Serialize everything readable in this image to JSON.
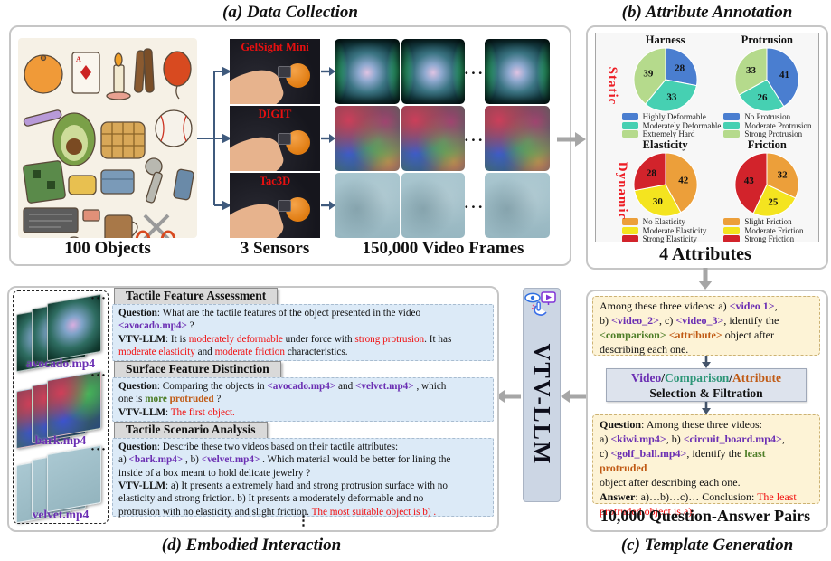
{
  "colors": {
    "pie_blue": "#4a7ed0",
    "pie_teal": "#46d0b2",
    "pie_green": "#b5da8c",
    "pie_orange": "#ec9f3a",
    "pie_yellow": "#f4e41f",
    "pie_red": "#d2232b",
    "static_dynamic_red": "#ed1c24",
    "sensor_label_red": "#e81010",
    "tag_purple": "#6b2fb3",
    "tag_green": "#4e7e28",
    "tag_orange": "#c05a14",
    "tag_teal": "#2e9678",
    "highlight_red": "#f10f0f"
  },
  "panel_a": {
    "title": "(a) Data Collection",
    "objects_label": "100 Objects",
    "sensors_label": "3 Sensors",
    "frames_label": "150,000 Video Frames",
    "sensors": [
      {
        "name": "GelSight Mini"
      },
      {
        "name": "DIGIT"
      },
      {
        "name": "Tac3D"
      }
    ],
    "dots": "···"
  },
  "panel_b": {
    "title": "(b) Attribute Annotation",
    "static_label": "Static",
    "dynamic_label": "Dynamic",
    "attributes_label": "4 Attributes"
  },
  "chart_data": [
    {
      "type": "pie",
      "group": "Static",
      "title": "Harness",
      "labels": [
        "Highly Deformable",
        "Moderately Deformable",
        "Extremely Hard"
      ],
      "values": [
        28,
        33,
        39
      ],
      "colors": [
        "#4a7ed0",
        "#46d0b2",
        "#b5da8c"
      ],
      "legend_position": "bottom"
    },
    {
      "type": "pie",
      "group": "Static",
      "title": "Protrusion",
      "labels": [
        "No Protrusion",
        "Moderate Protrusion",
        "Strong Protrusion"
      ],
      "values": [
        41,
        26,
        33
      ],
      "colors": [
        "#4a7ed0",
        "#46d0b2",
        "#b5da8c"
      ],
      "legend_position": "bottom"
    },
    {
      "type": "pie",
      "group": "Dynamic",
      "title": "Elasticity",
      "labels": [
        "No Elasticity",
        "Moderate Elasticity",
        "Strong Elasticity"
      ],
      "values": [
        42,
        30,
        28
      ],
      "colors": [
        "#ec9f3a",
        "#f4e41f",
        "#d2232b"
      ],
      "legend_position": "bottom"
    },
    {
      "type": "pie",
      "group": "Dynamic",
      "title": "Friction",
      "labels": [
        "Slight Friction",
        "Moderate Friction",
        "Strong Friction"
      ],
      "values": [
        32,
        25,
        43
      ],
      "colors": [
        "#ec9f3a",
        "#f4e41f",
        "#d2232b"
      ],
      "legend_position": "bottom"
    }
  ],
  "panel_c": {
    "title": "(c) Template Generation",
    "pairs_label": "10,000 Question-Answer Pairs",
    "template_box": [
      {
        "t": "Among these three videos: a) "
      },
      {
        "t": "<video 1>",
        "c": "purple"
      },
      {
        "t": ","
      },
      {
        "br": true
      },
      {
        "t": "b) "
      },
      {
        "t": "<video_2>",
        "c": "purple"
      },
      {
        "t": ", c) "
      },
      {
        "t": "<video_3>",
        "c": "purple"
      },
      {
        "t": ", identify the"
      },
      {
        "br": true
      },
      {
        "t": "<comparison>",
        "c": "green"
      },
      {
        "t": " "
      },
      {
        "t": "<attribute>",
        "c": "orange"
      },
      {
        "t": " object after"
      },
      {
        "br": true
      },
      {
        "t": "describing each one."
      }
    ],
    "selection_line1": [
      {
        "t": "Video",
        "c": "purple"
      },
      {
        "t": "/",
        "c": "b"
      },
      {
        "t": "Comparison",
        "c": "teal"
      },
      {
        "t": "/",
        "c": "b"
      },
      {
        "t": "Attribute",
        "c": "orange"
      }
    ],
    "selection_line2": "Selection & Filtration",
    "qa_box": [
      {
        "t": "Question",
        "c": "b"
      },
      {
        "t": ": Among these three videos:"
      },
      {
        "br": true
      },
      {
        "t": "a) "
      },
      {
        "t": "<kiwi.mp4>",
        "c": "purple"
      },
      {
        "t": ", b) "
      },
      {
        "t": "<circuit_board.mp4>",
        "c": "purple"
      },
      {
        "t": ","
      },
      {
        "br": true
      },
      {
        "t": "c) "
      },
      {
        "t": "<golf_ball.mp4>",
        "c": "purple"
      },
      {
        "t": ", identify the "
      },
      {
        "t": "least",
        "c": "green"
      },
      {
        "t": " "
      },
      {
        "t": "protruded",
        "c": "orange"
      },
      {
        "br": true
      },
      {
        "t": "object after describing each one."
      },
      {
        "br": true
      },
      {
        "t": "Answer",
        "c": "b"
      },
      {
        "t": ": a)…b)…c)… Conclusion: "
      },
      {
        "t": "The least",
        "c": "red"
      },
      {
        "br": true
      },
      {
        "t": "protruded object is a).",
        "c": "red"
      }
    ]
  },
  "vtv_bar": {
    "label": "VTV-LLM",
    "icon": "vision-video-touch-icon"
  },
  "panel_d": {
    "title": "(d) Embodied Interaction",
    "stack_dots": "···",
    "vertical_dots": "⋮",
    "videos": [
      {
        "label": "avocado.mp4"
      },
      {
        "label": "bark.mp4"
      },
      {
        "label": "velvet.mp4"
      }
    ],
    "sections": [
      {
        "header": "Tactile Feature Assessment",
        "body": [
          {
            "t": "Question",
            "c": "b"
          },
          {
            "t": ": What are the tactile features of the object presented in the video"
          },
          {
            "br": true
          },
          {
            "t": "<avocado.mp4>",
            "c": "purple"
          },
          {
            "t": " ?"
          },
          {
            "br": true
          },
          {
            "t": "VTV-LLM",
            "c": "b"
          },
          {
            "t": ": It is "
          },
          {
            "t": "moderately deformable",
            "c": "red"
          },
          {
            "t": " under force with "
          },
          {
            "t": "strong protrusion",
            "c": "red"
          },
          {
            "t": ". It has"
          },
          {
            "br": true
          },
          {
            "t": "moderate elasticity",
            "c": "red"
          },
          {
            "t": " and "
          },
          {
            "t": "moderate friction",
            "c": "red"
          },
          {
            "t": " characteristics."
          }
        ]
      },
      {
        "header": "Surface Feature Distinction",
        "body": [
          {
            "t": "Question",
            "c": "b"
          },
          {
            "t": ": Comparing the objects in "
          },
          {
            "t": "<avocado.mp4>",
            "c": "purple"
          },
          {
            "t": " and "
          },
          {
            "t": "<velvet.mp4>",
            "c": "purple"
          },
          {
            "t": " , which"
          },
          {
            "br": true
          },
          {
            "t": "one is "
          },
          {
            "t": "more",
            "c": "green"
          },
          {
            "t": " "
          },
          {
            "t": "protruded",
            "c": "orange"
          },
          {
            "t": " ?"
          },
          {
            "br": true
          },
          {
            "t": "VTV-LLM",
            "c": "b"
          },
          {
            "t": ": "
          },
          {
            "t": "The first object.",
            "c": "red"
          }
        ]
      },
      {
        "header": "Tactile Scenario Analysis",
        "body": [
          {
            "t": "Question",
            "c": "b"
          },
          {
            "t": ": Describe these two videos based on their tactile attributes:"
          },
          {
            "br": true
          },
          {
            "t": "a) "
          },
          {
            "t": "<bark.mp4>",
            "c": "purple"
          },
          {
            "t": " , b) "
          },
          {
            "t": "<velvet.mp4>",
            "c": "purple"
          },
          {
            "t": " . Which material would be better for lining the"
          },
          {
            "br": true
          },
          {
            "t": "inside of a box meant to hold delicate jewelry ?"
          },
          {
            "br": true
          },
          {
            "t": "VTV-LLM",
            "c": "b"
          },
          {
            "t": ": a) It presents a extremely hard and strong protrusion surface with no"
          },
          {
            "br": true
          },
          {
            "t": "elasticity and strong friction. b) It presents a moderately deformable and no"
          },
          {
            "br": true
          },
          {
            "t": "protrusion with no elasticity and slight friction. "
          },
          {
            "t": "The most suitable object is b) .",
            "c": "red"
          }
        ]
      }
    ]
  }
}
